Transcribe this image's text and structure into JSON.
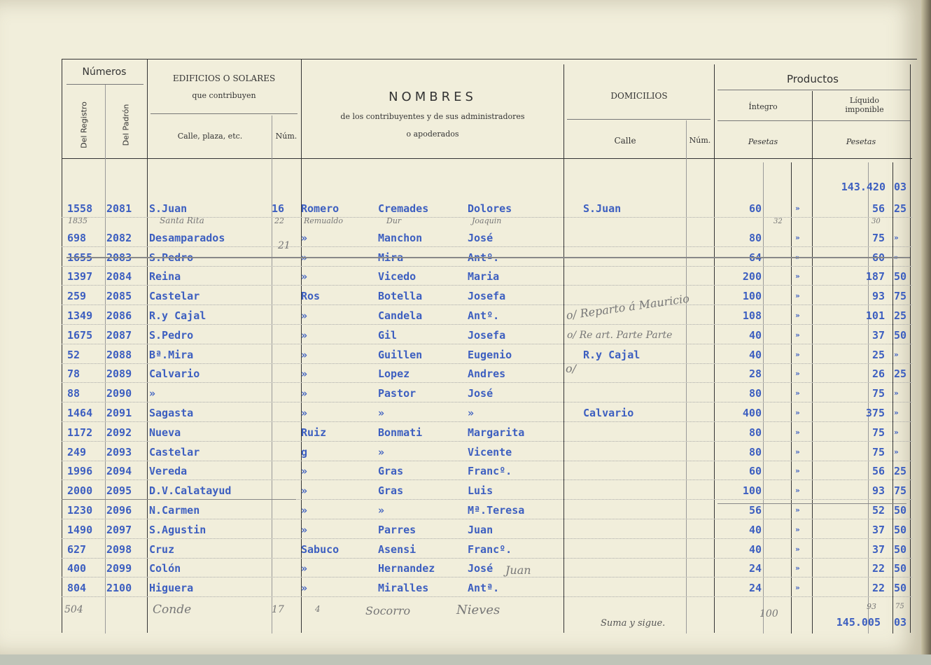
{
  "header": {
    "numeros": "Números",
    "del_registro": "Del Registro",
    "del_padron": "Del Padrón",
    "edificios": "EDIFICIOS O SOLARES",
    "que_contribuyen": "que contribuyen",
    "calle_plaza": "Calle, plaza, etc.",
    "num": "Núm.",
    "nombres": "NOMBRES",
    "nombres_sub1": "de los contribuyentes y de sus administradores",
    "nombres_sub2": "o apoderados",
    "domicilios": "DOMICILIOS",
    "calle": "Calle",
    "dom_num": "Núm.",
    "productos": "Productos",
    "integro": "Íntegro",
    "liquido": "Líquido imponible",
    "pesetas1": "Pesetas",
    "pesetas2": "Pesetas"
  },
  "carry_forward": {
    "pesetas": "143.420",
    "cents": "03"
  },
  "rows": [
    {
      "reg": "1558",
      "padron": "2081",
      "calle": "S.Juan",
      "num": "16",
      "ap1": "Romero",
      "ap2": "Cremades",
      "nombre": "Dolores",
      "dom": "S.Juan",
      "int": "60",
      "int_c": "»",
      "liq": "56",
      "liq_c": "25"
    },
    {
      "reg": "698",
      "padron": "2082",
      "calle": "Desamparados",
      "num": "",
      "ap1": "»",
      "ap2": "Manchon",
      "nombre": "José",
      "dom": "",
      "int": "80",
      "int_c": "»",
      "liq": "75",
      "liq_c": "»"
    },
    {
      "reg": "1655",
      "padron": "2083",
      "calle": "S.Pedro",
      "num": "",
      "ap1": "»",
      "ap2": "Mira",
      "nombre": "Antº.",
      "dom": "",
      "int": "64",
      "int_c": "»",
      "liq": "60",
      "liq_c": "»"
    },
    {
      "reg": "1397",
      "padron": "2084",
      "calle": "Reina",
      "num": "",
      "ap1": "»",
      "ap2": "Vicedo",
      "nombre": "Maria",
      "dom": "",
      "int": "200",
      "int_c": "»",
      "liq": "187",
      "liq_c": "50"
    },
    {
      "reg": "259",
      "padron": "2085",
      "calle": "Castelar",
      "num": "",
      "ap1": "Ros",
      "ap2": "Botella",
      "nombre": "Josefa",
      "dom": "",
      "int": "100",
      "int_c": "»",
      "liq": "93",
      "liq_c": "75"
    },
    {
      "reg": "1349",
      "padron": "2086",
      "calle": "R.y Cajal",
      "num": "",
      "ap1": "»",
      "ap2": "Candela",
      "nombre": "Antº.",
      "dom": "",
      "int": "108",
      "int_c": "»",
      "liq": "101",
      "liq_c": "25"
    },
    {
      "reg": "1675",
      "padron": "2087",
      "calle": "S.Pedro",
      "num": "",
      "ap1": "»",
      "ap2": "Gil",
      "nombre": "Josefa",
      "dom": "",
      "int": "40",
      "int_c": "»",
      "liq": "37",
      "liq_c": "50"
    },
    {
      "reg": "52",
      "padron": "2088",
      "calle": "Bª.Mira",
      "num": "",
      "ap1": "»",
      "ap2": "Guillen",
      "nombre": "Eugenio",
      "dom": "R.y Cajal",
      "int": "40",
      "int_c": "»",
      "liq": "25",
      "liq_c": "»"
    },
    {
      "reg": "78",
      "padron": "2089",
      "calle": "Calvario",
      "num": "",
      "ap1": "»",
      "ap2": "Lopez",
      "nombre": "Andres",
      "dom": "",
      "int": "28",
      "int_c": "»",
      "liq": "26",
      "liq_c": "25"
    },
    {
      "reg": "88",
      "padron": "2090",
      "calle": "»",
      "num": "",
      "ap1": "»",
      "ap2": "Pastor",
      "nombre": "José",
      "dom": "",
      "int": "80",
      "int_c": "»",
      "liq": "75",
      "liq_c": "»"
    },
    {
      "reg": "1464",
      "padron": "2091",
      "calle": "Sagasta",
      "num": "",
      "ap1": "»",
      "ap2": "»",
      "nombre": "»",
      "dom": "Calvario",
      "int": "400",
      "int_c": "»",
      "liq": "375",
      "liq_c": "»"
    },
    {
      "reg": "1172",
      "padron": "2092",
      "calle": "Nueva",
      "num": "",
      "ap1": "Ruiz",
      "ap2": "Bonmati",
      "nombre": "Margarita",
      "dom": "",
      "int": "80",
      "int_c": "»",
      "liq": "75",
      "liq_c": "»"
    },
    {
      "reg": "249",
      "padron": "2093",
      "calle": "Castelar",
      "num": "",
      "ap1": "g",
      "ap2": "»",
      "nombre": "Vicente",
      "dom": "",
      "int": "80",
      "int_c": "»",
      "liq": "75",
      "liq_c": "»"
    },
    {
      "reg": "1996",
      "padron": "2094",
      "calle": "Vereda",
      "num": "",
      "ap1": "»",
      "ap2": "Gras",
      "nombre": "Francº.",
      "dom": "",
      "int": "60",
      "int_c": "»",
      "liq": "56",
      "liq_c": "25"
    },
    {
      "reg": "2000",
      "padron": "2095",
      "calle": "D.V.Calatayud",
      "num": "",
      "ap1": "»",
      "ap2": "Gras",
      "nombre": "Luis",
      "dom": "",
      "int": "100",
      "int_c": "»",
      "liq": "93",
      "liq_c": "75"
    },
    {
      "reg": "1230",
      "padron": "2096",
      "calle": "N.Carmen",
      "num": "",
      "ap1": "»",
      "ap2": "»",
      "nombre": "Mª.Teresa",
      "dom": "",
      "int": "56",
      "int_c": "»",
      "liq": "52",
      "liq_c": "50"
    },
    {
      "reg": "1490",
      "padron": "2097",
      "calle": "S.Agustin",
      "num": "",
      "ap1": "»",
      "ap2": "Parres",
      "nombre": "Juan",
      "dom": "",
      "int": "40",
      "int_c": "»",
      "liq": "37",
      "liq_c": "50"
    },
    {
      "reg": "627",
      "padron": "2098",
      "calle": "Cruz",
      "num": "",
      "ap1": "Sabuco",
      "ap2": "Asensi",
      "nombre": "Francº.",
      "dom": "",
      "int": "40",
      "int_c": "»",
      "liq": "37",
      "liq_c": "50"
    },
    {
      "reg": "400",
      "padron": "2099",
      "calle": "Colón",
      "num": "",
      "ap1": "»",
      "ap2": "Hernandez",
      "nombre": "José",
      "dom": "",
      "int": "24",
      "int_c": "»",
      "liq": "22",
      "liq_c": "50"
    },
    {
      "reg": "804",
      "padron": "2100",
      "calle": "Higuera",
      "num": "",
      "ap1": "»",
      "ap2": "Miralles",
      "nombre": "Antª.",
      "dom": "",
      "int": "24",
      "int_c": "»",
      "liq": "22",
      "liq_c": "50"
    }
  ],
  "handwritten": {
    "reg_1835": "1835",
    "santa_rita": "Santa Rita",
    "num_22": "22",
    "remualdo": "Remualdo",
    "dur": "Dur",
    "joaquin": "Joaquin",
    "num_21": "21",
    "int_32": "32",
    "liq_30": "30",
    "note1": "o/ Reparto á Mauricio",
    "note2": "o/ Re art. Parte Parte",
    "note3": "o/",
    "juan": "Juan",
    "last_reg": "504",
    "last_calle": "Conde",
    "last_num": "17",
    "last_ap1": "4",
    "last_ap2": "Socorro",
    "last_nombre": "Nieves",
    "last_int": "100",
    "total_pes_hw": "93",
    "total_cent_hw": "75"
  },
  "footer": {
    "suma_label": "Suma y sigue.",
    "total_pesetas": "145.005",
    "total_cents": "03"
  }
}
